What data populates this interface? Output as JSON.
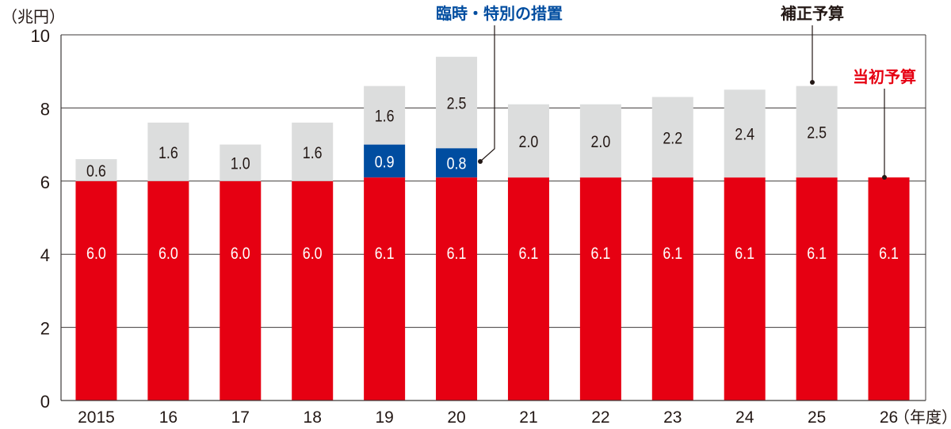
{
  "chart_data": {
    "type": "bar",
    "stacked": true,
    "unit_label": "（兆円）",
    "x_unit_label": "（年度）",
    "categories": [
      "2015",
      "16",
      "17",
      "18",
      "19",
      "20",
      "21",
      "22",
      "23",
      "24",
      "25",
      "26"
    ],
    "ylim": [
      0,
      10
    ],
    "yticks": [
      0,
      2,
      4,
      6,
      8,
      10
    ],
    "grid": true,
    "series": [
      {
        "name": "当初予算",
        "color": "#e60012",
        "label_color": "#ffffff",
        "values": [
          6.0,
          6.0,
          6.0,
          6.0,
          6.1,
          6.1,
          6.1,
          6.1,
          6.1,
          6.1,
          6.1,
          6.1
        ]
      },
      {
        "name": "臨時・特別の措置",
        "color": "#004da0",
        "label_color": "#ffffff",
        "values": [
          null,
          null,
          null,
          null,
          0.9,
          0.8,
          null,
          null,
          null,
          null,
          null,
          null
        ]
      },
      {
        "name": "補正予算",
        "color": "#dcdddd",
        "label_color": "#231815",
        "values": [
          0.6,
          1.6,
          1.0,
          1.6,
          1.6,
          2.5,
          2.0,
          2.0,
          2.2,
          2.4,
          2.5,
          null
        ]
      }
    ],
    "annotations": [
      {
        "text": "臨時・特別の措置",
        "color": "#004da0",
        "target": "20"
      },
      {
        "text": "補正予算",
        "color": "#231815",
        "target": "25"
      },
      {
        "text": "当初予算",
        "color": "#e60012",
        "target": "26"
      }
    ]
  }
}
